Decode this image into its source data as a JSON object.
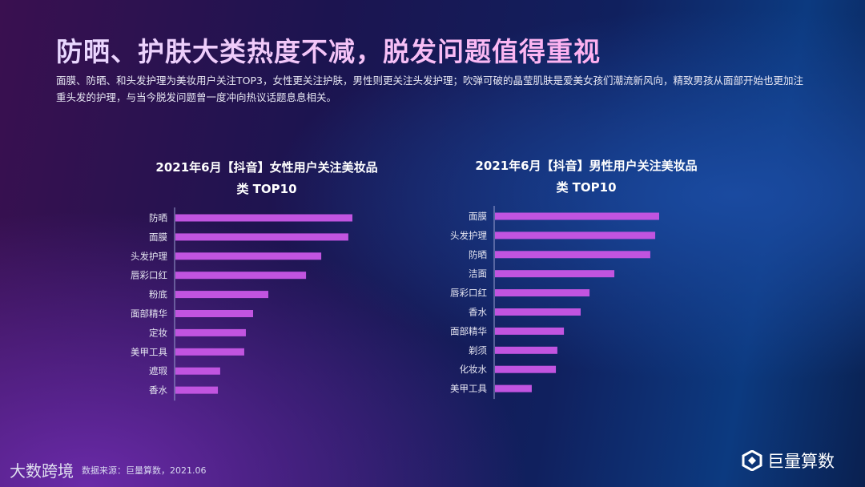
{
  "title": "防晒、护肤大类热度不减，脱发问题值得重视",
  "description": "面膜、防晒、和头发护理为美妆用户关注TOP3，女性更关注护肤，男性则更关注头发护理；吹弹可破的晶莹肌肤是爱美女孩们潮流新风向，精致男孩从面部开始也更加注重头发的护理，与当今脱发问题曾一度冲向热议话题息息相关。",
  "footer": {
    "logo": "大数跨境",
    "source": "数据来源：巨量算数，2021.06",
    "brand": "巨量算数"
  },
  "colors": {
    "bar": "#c154e0",
    "axis": "#9aa0d0"
  },
  "chart_data": [
    {
      "type": "bar",
      "orientation": "horizontal",
      "title_line1": "2021年6月【抖音】女性用户关注美妆品",
      "title_line2": "类  TOP10",
      "categories": [
        "防晒",
        "面膜",
        "头发护理",
        "唇彩口红",
        "粉底",
        "面部精华",
        "定妆",
        "美甲工具",
        "遮瑕",
        "香水"
      ],
      "values": [
        100,
        97.7,
        82.4,
        73.8,
        52.5,
        43.9,
        39.8,
        38.9,
        25.3,
        24.0
      ],
      "grid": false,
      "legend": "none"
    },
    {
      "type": "bar",
      "orientation": "horizontal",
      "title_line1": "2021年6月【抖音】男性用户关注美妆品",
      "title_line2": "类  TOP10",
      "categories": [
        "面膜",
        "头发护理",
        "防晒",
        "洁面",
        "唇彩口红",
        "香水",
        "面部精华",
        "剃须",
        "化妆水",
        "美甲工具"
      ],
      "values": [
        100,
        97.6,
        94.6,
        72.7,
        57.6,
        52.2,
        42.0,
        38.0,
        37.1,
        22.4
      ],
      "grid": false,
      "legend": "none"
    }
  ]
}
